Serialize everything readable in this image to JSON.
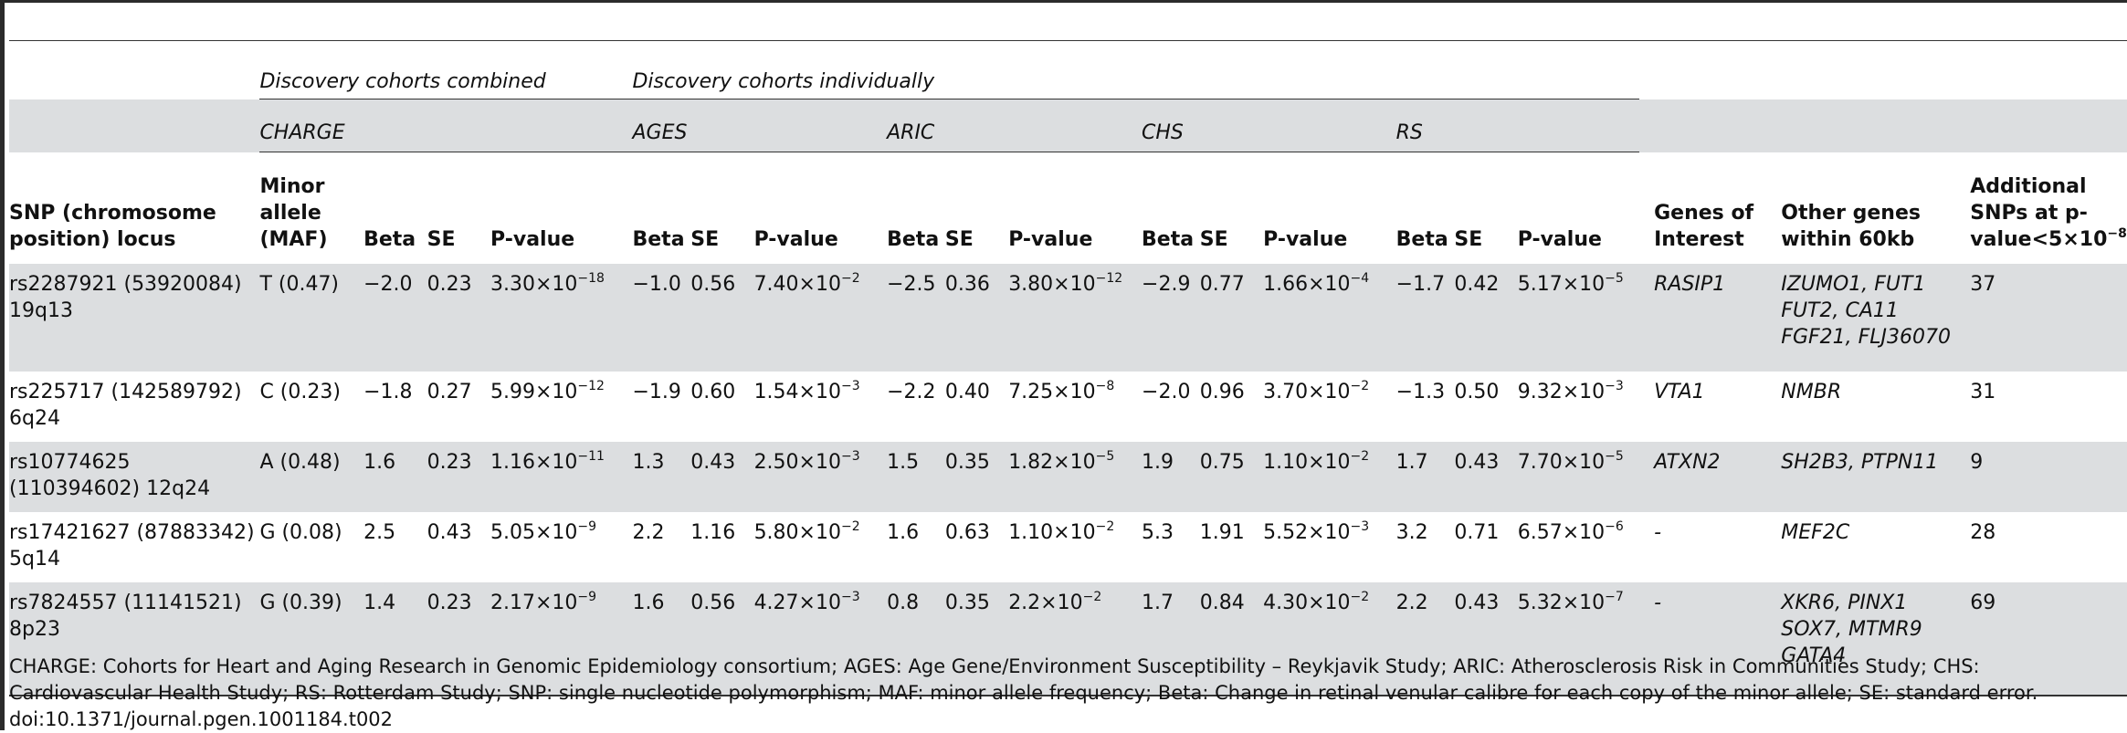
{
  "table": {
    "group_headers": {
      "combined": "Discovery cohorts combined",
      "individually": "Discovery cohorts individually"
    },
    "sub_headers": {
      "charge": "CHARGE",
      "ages": "AGES",
      "aric": "ARIC",
      "chs": "CHS",
      "rs": "RS"
    },
    "column_headers": {
      "snp": "SNP (chromosome position) locus",
      "minor_allele": "Minor allele (MAF)",
      "beta": "Beta",
      "se": "SE",
      "p_value": "P-value",
      "genes_of_interest": "Genes of Interest",
      "other_genes": "Other genes within 60kb",
      "additional_snps": "Additional SNPs at p-value<5×10",
      "additional_snps_exp": "−8"
    },
    "rows": [
      {
        "snp": "rs2287921 (53920084) 19q13",
        "allele": "T (0.47)",
        "charge": {
          "beta": "−2.0",
          "se": "0.23",
          "p": "3.30×10",
          "e": "−18"
        },
        "ages": {
          "beta": "−1.0",
          "se": "0.56",
          "p": "7.40×10",
          "e": "−2"
        },
        "aric": {
          "beta": "−2.5",
          "se": "0.36",
          "p": "3.80×10",
          "e": "−12"
        },
        "chs": {
          "beta": "−2.9",
          "se": "0.77",
          "p": "1.66×10",
          "e": "−4"
        },
        "rs": {
          "beta": "−1.7",
          "se": "0.42",
          "p": "5.17×10",
          "e": "−5"
        },
        "genes_of_interest": "RASIP1",
        "other_genes": [
          "IZUMO1, FUT1",
          "FUT2, CA11",
          "FGF21, FLJ36070"
        ],
        "additional_snps": "37"
      },
      {
        "snp": "rs225717 (142589792) 6q24",
        "allele": "C (0.23)",
        "charge": {
          "beta": "−1.8",
          "se": "0.27",
          "p": "5.99×10",
          "e": "−12"
        },
        "ages": {
          "beta": "−1.9",
          "se": "0.60",
          "p": "1.54×10",
          "e": "−3"
        },
        "aric": {
          "beta": "−2.2",
          "se": "0.40",
          "p": "7.25×10",
          "e": "−8"
        },
        "chs": {
          "beta": "−2.0",
          "se": "0.96",
          "p": "3.70×10",
          "e": "−2"
        },
        "rs": {
          "beta": "−1.3",
          "se": "0.50",
          "p": "9.32×10",
          "e": "−3"
        },
        "genes_of_interest": "VTA1",
        "other_genes": [
          "NMBR"
        ],
        "additional_snps": "31"
      },
      {
        "snp": "rs10774625 (110394602) 12q24",
        "allele": "A (0.48)",
        "charge": {
          "beta": "1.6",
          "se": "0.23",
          "p": "1.16×10",
          "e": "−11"
        },
        "ages": {
          "beta": "1.3",
          "se": "0.43",
          "p": "2.50×10",
          "e": "−3"
        },
        "aric": {
          "beta": "1.5",
          "se": "0.35",
          "p": "1.82×10",
          "e": "−5"
        },
        "chs": {
          "beta": "1.9",
          "se": "0.75",
          "p": "1.10×10",
          "e": "−2"
        },
        "rs": {
          "beta": "1.7",
          "se": "0.43",
          "p": "7.70×10",
          "e": "−5"
        },
        "genes_of_interest": "ATXN2",
        "other_genes": [
          "SH2B3, PTPN11"
        ],
        "additional_snps": "9"
      },
      {
        "snp": "rs17421627 (87883342) 5q14",
        "allele": "G (0.08)",
        "charge": {
          "beta": "2.5",
          "se": "0.43",
          "p": "5.05×10",
          "e": "−9"
        },
        "ages": {
          "beta": "2.2",
          "se": "1.16",
          "p": "5.80×10",
          "e": "−2"
        },
        "aric": {
          "beta": "1.6",
          "se": "0.63",
          "p": "1.10×10",
          "e": "−2"
        },
        "chs": {
          "beta": "5.3",
          "se": "1.91",
          "p": "5.52×10",
          "e": "−3"
        },
        "rs": {
          "beta": "3.2",
          "se": "0.71",
          "p": "6.57×10",
          "e": "−6"
        },
        "genes_of_interest": "-",
        "other_genes": [
          "MEF2C"
        ],
        "additional_snps": "28"
      },
      {
        "snp": "rs7824557 (11141521) 8p23",
        "allele": "G (0.39)",
        "charge": {
          "beta": "1.4",
          "se": "0.23",
          "p": "2.17×10",
          "e": "−9"
        },
        "ages": {
          "beta": "1.6",
          "se": "0.56",
          "p": "4.27×10",
          "e": "−3"
        },
        "aric": {
          "beta": "0.8",
          "se": "0.35",
          "p": "2.2×10",
          "e": "−2"
        },
        "chs": {
          "beta": "1.7",
          "se": "0.84",
          "p": "4.30×10",
          "e": "−2"
        },
        "rs": {
          "beta": "2.2",
          "se": "0.43",
          "p": "5.32×10",
          "e": "−7"
        },
        "genes_of_interest": "-",
        "other_genes": [
          "XKR6, PINX1",
          "SOX7, MTMR9",
          "GATA4"
        ],
        "additional_snps": "69"
      }
    ]
  },
  "footnote": {
    "text": "CHARGE: Cohorts for Heart and Aging Research in Genomic Epidemiology consortium; AGES: Age Gene/Environment Susceptibility – Reykjavik Study; ARIC: Atherosclerosis Risk in Communities Study; CHS: Cardiovascular Health Study; RS: Rotterdam Study; SNP: single nucleotide polymorphism; MAF: minor allele frequency; Beta: Change in retinal venular calibre for each copy of the minor allele; SE: standard error.",
    "doi": "doi:10.1371/journal.pgen.1001184.t002"
  }
}
